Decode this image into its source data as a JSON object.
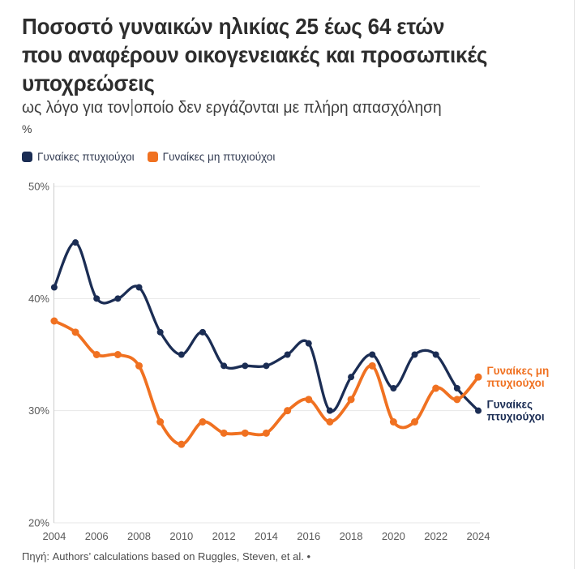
{
  "header": {
    "title_lines": [
      "Ποσοστό γυναικών ηλικίας 25 έως 64 ετών",
      "που αναφέρουν οικογενειακές και προσωπικές",
      "υποχρεώσεις"
    ],
    "subtitle_before_cursor": "ως λόγο για τον",
    "subtitle_after_cursor": "οποίο δεν εργάζονται με πλήρη απασχόληση",
    "unit_label": "%"
  },
  "legend": {
    "items": [
      {
        "label": "Γυναίκες πτυχιούχοι",
        "color": "#1b2d54"
      },
      {
        "label": "Γυναίκες μη πτυχιούχοι",
        "color": "#f07121"
      }
    ]
  },
  "chart_data": {
    "type": "line",
    "x": [
      2004,
      2005,
      2006,
      2007,
      2008,
      2009,
      2010,
      2011,
      2012,
      2013,
      2014,
      2015,
      2016,
      2017,
      2018,
      2019,
      2020,
      2021,
      2022,
      2023,
      2024
    ],
    "series": [
      {
        "name": "Γυναίκες πτυχιούχοι",
        "color": "#1b2d54",
        "values": [
          41,
          45,
          40,
          40,
          41,
          37,
          35,
          37,
          34,
          34,
          34,
          35,
          36,
          30,
          33,
          35,
          32,
          35,
          35,
          32,
          30
        ],
        "end_label_lines": [
          "Γυναίκες",
          "πτυχιούχοι"
        ]
      },
      {
        "name": "Γυναίκες μη πτυχιούχοι",
        "color": "#f07121",
        "values": [
          38,
          37,
          35,
          35,
          34,
          29,
          27,
          29,
          28,
          28,
          28,
          30,
          31,
          29,
          31,
          34,
          29,
          29,
          32,
          31,
          33
        ],
        "end_label_lines": [
          "Γυναίκες μη",
          "πτυχιούχοι"
        ]
      }
    ],
    "ylim": [
      20,
      50
    ],
    "yticks": [
      50,
      40,
      30,
      20
    ],
    "ytick_labels": [
      "50%",
      "40%",
      "30%",
      "20%"
    ],
    "xticks": [
      2004,
      2006,
      2008,
      2010,
      2012,
      2014,
      2016,
      2018,
      2020,
      2022,
      2024
    ],
    "xtick_labels": [
      "2004",
      "2006",
      "2008",
      "2010",
      "2012",
      "2014",
      "2016",
      "2018",
      "2020",
      "2022",
      "2024"
    ],
    "grid": "horizontal",
    "legend_position": "top",
    "line_style": "smooth",
    "markers": true
  },
  "footer": {
    "source": "Πηγή: Authors’ calculations based on Ruggles, Steven, et al. •"
  },
  "colors": {
    "title": "#2d2d2d",
    "axis_text": "#595959",
    "gridline": "#e7e7e7",
    "axis_line": "#cccccc"
  }
}
